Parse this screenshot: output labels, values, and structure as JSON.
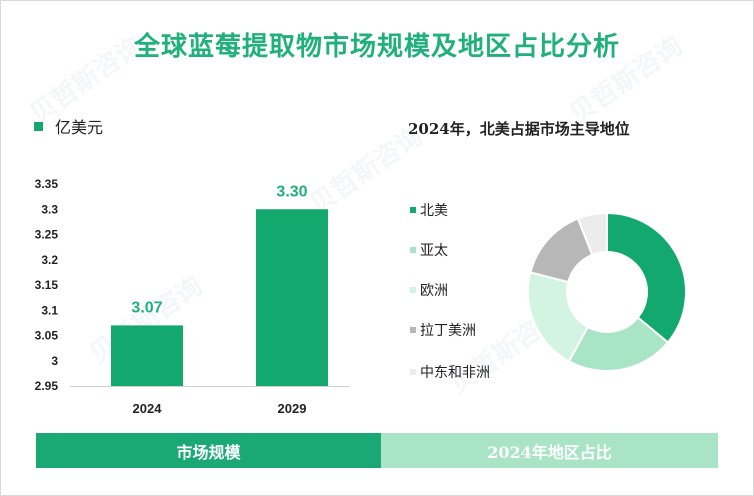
{
  "title": "全球蓝莓提取物市场规模及地区占比分析",
  "unit_label": "亿美元",
  "pie_title": "2024年，北美占据市场主导地位",
  "tabs": {
    "left": "市场规模",
    "right": "2024年地区占比"
  },
  "watermark": "贝哲斯咨询",
  "colors": {
    "accent": "#1fb07b",
    "bar": "#13a86d",
    "tab_left": "#1aa874",
    "tab_right": "#a9e4c6"
  },
  "chart_data": [
    {
      "type": "bar",
      "title": "",
      "categories": [
        "2024",
        "2029"
      ],
      "values": [
        3.07,
        3.3
      ],
      "data_labels": [
        "3.07",
        "3.30"
      ],
      "yticks": [
        "2.95",
        "3",
        "3.05",
        "3.1",
        "3.15",
        "3.2",
        "3.25",
        "3.3",
        "3.35"
      ],
      "ylim": [
        2.95,
        3.35
      ],
      "ylabel": "亿美元",
      "grid": false
    },
    {
      "type": "pie",
      "donut": true,
      "labels": [
        "北美",
        "亚太",
        "欧洲",
        "拉丁美洲",
        "中东和非洲"
      ],
      "values": [
        36,
        22,
        21,
        15,
        6
      ],
      "colors": [
        "#13a86d",
        "#a9e4c6",
        "#d3f3e3",
        "#b7b7b7",
        "#ececec"
      ]
    }
  ]
}
